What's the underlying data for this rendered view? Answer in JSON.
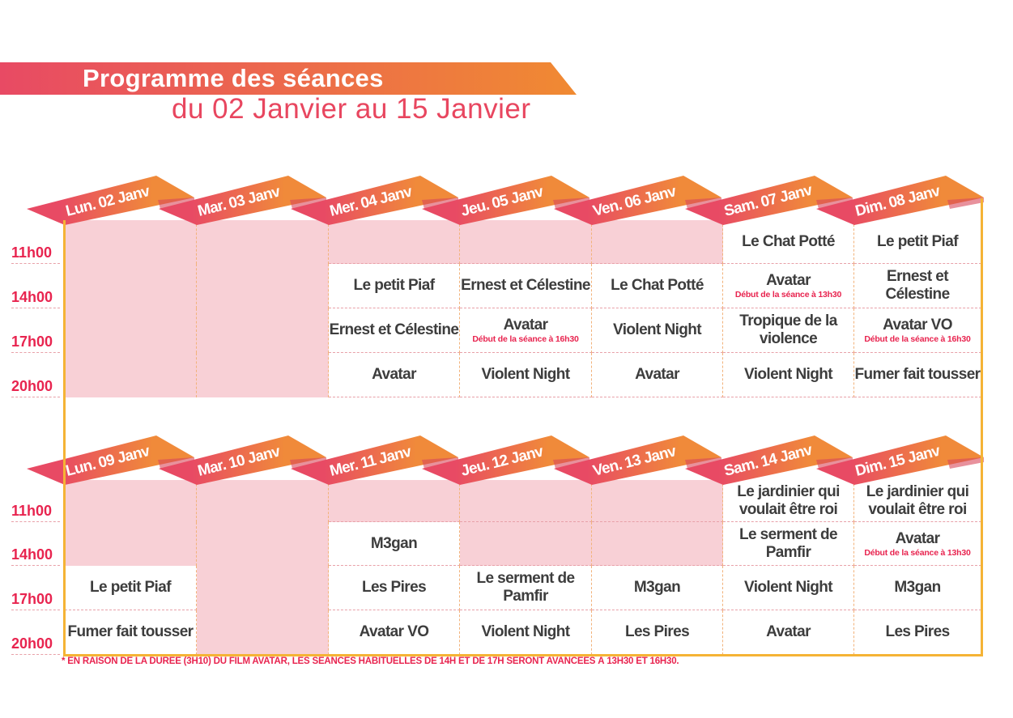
{
  "header": {
    "title": "Programme des séances",
    "subtitle": "du 02 Janvier au 15 Janvier"
  },
  "colors": {
    "pink": "#e8465f",
    "orange": "#f0873a",
    "empty": "#f8d0d6",
    "border": "#f5b335"
  },
  "times": [
    "11h00",
    "14h00",
    "17h00",
    "20h00"
  ],
  "weeks": [
    {
      "days": [
        "Lun. 02 Janv",
        "Mar. 03 Janv",
        "Mer. 04 Janv",
        "Jeu. 05 Janv",
        "Ven. 06 Janv",
        "Sam. 07 Janv",
        "Dim. 08 Janv"
      ],
      "grid": [
        [
          null,
          null,
          null,
          null
        ],
        [
          null,
          null,
          null,
          null
        ],
        [
          null,
          {
            "title": "Le petit Piaf"
          },
          {
            "title": "Ernest et Célestine"
          },
          {
            "title": "Avatar"
          }
        ],
        [
          null,
          {
            "title": "Ernest et Célestine"
          },
          {
            "title": "Avatar",
            "note": "Début de la séance à 16h30"
          },
          {
            "title": "Violent Night"
          }
        ],
        [
          null,
          {
            "title": "Le Chat Potté"
          },
          {
            "title": "Violent Night"
          },
          {
            "title": "Avatar"
          }
        ],
        [
          {
            "title": "Le Chat Potté"
          },
          {
            "title": "Avatar",
            "note": "Début de la séance à 13h30"
          },
          {
            "title": "Tropique de la violence"
          },
          {
            "title": "Violent Night"
          }
        ],
        [
          {
            "title": "Le petit Piaf"
          },
          {
            "title": "Ernest et Célestine"
          },
          {
            "title": "Avatar VO",
            "note": "Début de la séance à 16h30"
          },
          {
            "title": "Fumer fait tousser"
          }
        ]
      ]
    },
    {
      "days": [
        "Lun. 09 Janv",
        "Mar. 10 Janv",
        "Mer. 11 Janv",
        "Jeu. 12 Janv",
        "Ven. 13 Janv",
        "Sam. 14 Janv",
        "Dim. 15 Janv"
      ],
      "grid": [
        [
          null,
          null,
          {
            "title": "Le petit Piaf"
          },
          {
            "title": "Fumer fait tousser"
          }
        ],
        [
          null,
          null,
          null,
          null
        ],
        [
          null,
          {
            "title": "M3gan"
          },
          {
            "title": "Les Pires"
          },
          {
            "title": "Avatar VO"
          }
        ],
        [
          null,
          null,
          {
            "title": "Le serment de Pamfir"
          },
          {
            "title": "Violent Night"
          }
        ],
        [
          null,
          null,
          {
            "title": "M3gan"
          },
          {
            "title": "Les Pires"
          }
        ],
        [
          {
            "title": "Le jardinier qui voulait être roi"
          },
          {
            "title": "Le serment de Pamfir"
          },
          {
            "title": "Violent Night"
          },
          {
            "title": "Avatar"
          }
        ],
        [
          {
            "title": "Le jardinier qui voulait être roi"
          },
          {
            "title": "Avatar",
            "note": "Début de la séance à 13h30"
          },
          {
            "title": "M3gan"
          },
          {
            "title": "Les Pires"
          }
        ]
      ]
    }
  ],
  "footnote": "* EN RAISON DE LA DURÉE (3H10) DU FILM AVATAR, LES SÉANCES HABITUELLES DE 14H ET DE 17H SERONT AVANCÉES À 13H30 ET 16H30."
}
